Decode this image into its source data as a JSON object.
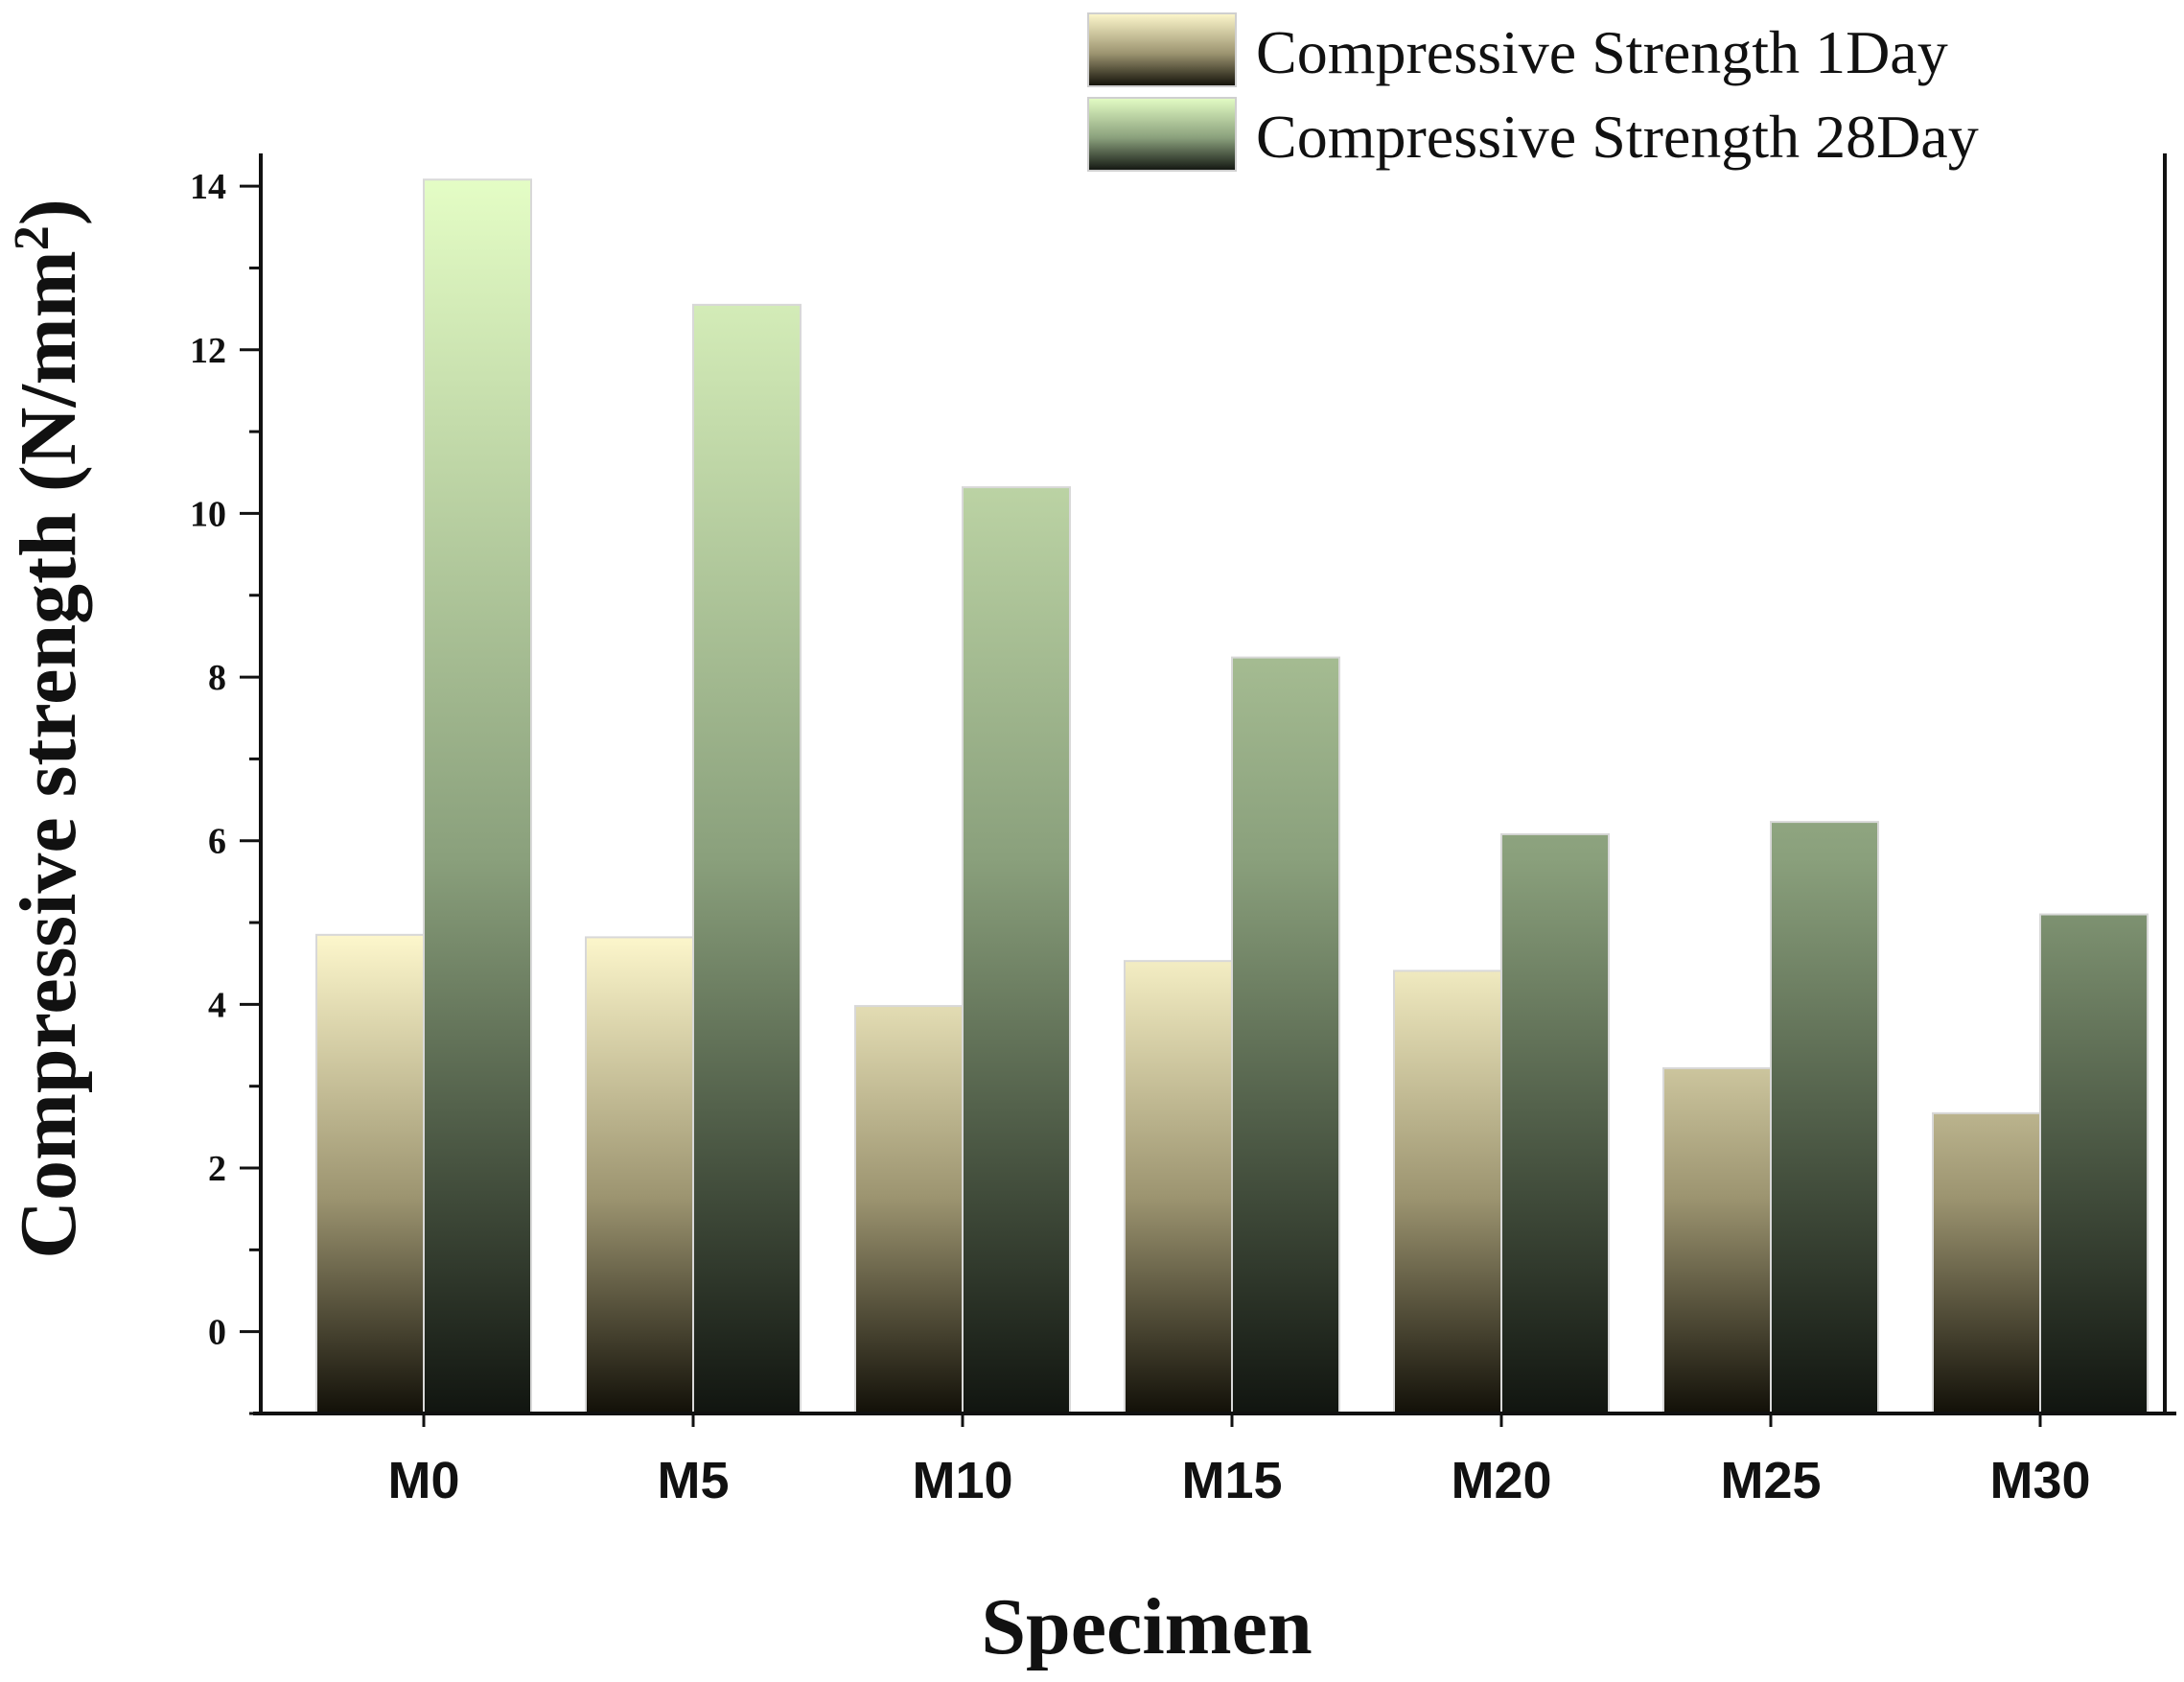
{
  "chart_data": {
    "type": "bar",
    "title": "",
    "xlabel": "Specimen",
    "ylabel": "Compressive strength (N/mm",
    "ylabel_sup": "2",
    "ylabel_close": ")",
    "categories": [
      "M0",
      "M5",
      "M10",
      "M15",
      "M20",
      "M25",
      "M30"
    ],
    "series": [
      {
        "name": "Compressive Strength 1Day",
        "values": [
          4.85,
          4.82,
          3.98,
          4.53,
          4.41,
          3.22,
          2.67
        ],
        "color_top": "#fdf7cc",
        "color_mid": "#9c9470",
        "color_bottom": "#121008"
      },
      {
        "name": "Compressive Strength 28Day",
        "values": [
          14.08,
          12.55,
          10.32,
          8.24,
          6.08,
          6.23,
          5.1
        ],
        "color_top": "#e4fdc5",
        "color_mid": "#8aa07c",
        "color_bottom": "#111510"
      }
    ],
    "ylim": [
      -1,
      14.4
    ],
    "yticks": [
      0,
      2,
      4,
      6,
      8,
      10,
      12,
      14
    ],
    "ytick_labels": [
      "0",
      "2",
      "4",
      "6",
      "8",
      "10",
      "12",
      "14"
    ],
    "legend_position": "top-right",
    "grid": false
  }
}
